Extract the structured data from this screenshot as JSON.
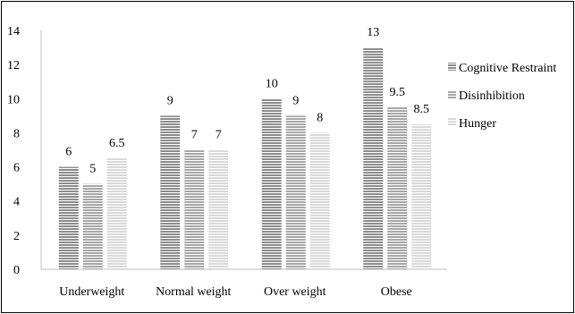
{
  "chart_data": {
    "type": "bar",
    "title": "",
    "xlabel": "",
    "ylabel": "",
    "categories": [
      "Underweight",
      "Normal weight",
      "Over weight",
      "Obese"
    ],
    "series": [
      {
        "name": "Cognitive Restraint",
        "values": [
          6,
          9,
          10,
          13
        ],
        "color": "#8c8c8c"
      },
      {
        "name": "Disinhibition",
        "values": [
          5,
          7,
          9,
          9.5
        ],
        "color": "#a6a6a6"
      },
      {
        "name": "Hunger",
        "values": [
          6.5,
          7,
          8,
          8.5
        ],
        "color": "#d9d9d9"
      }
    ],
    "data_labels": [
      [
        "6",
        "9",
        "10",
        "13"
      ],
      [
        "5",
        "7",
        "9",
        "9.5"
      ],
      [
        "6.5",
        "7",
        "8",
        "8.5"
      ]
    ],
    "ylim": [
      0,
      14
    ],
    "yticks": [
      0,
      2,
      4,
      6,
      8,
      10,
      12,
      14
    ],
    "grid": false,
    "legend_position": "right",
    "bar_pattern": "horizontal-stripes"
  }
}
